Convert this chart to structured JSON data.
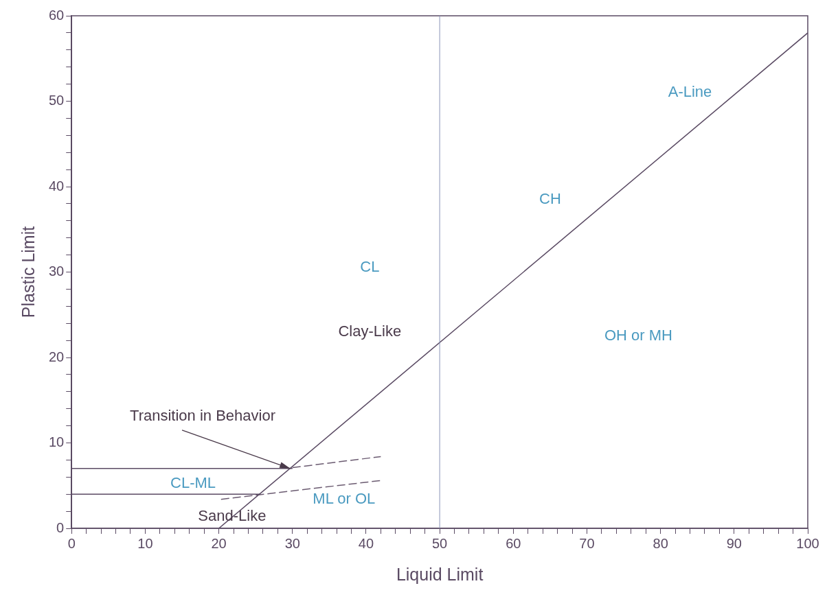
{
  "chart_data": {
    "type": "line",
    "xlabel": "Liquid Limit",
    "ylabel": "Plastic Limit",
    "xlim": [
      0,
      100
    ],
    "ylim": [
      0,
      60
    ],
    "xticks": [
      0,
      {
        "value": 2,
        "label": null
      },
      {
        "value": 4,
        "label": null
      },
      {
        "value": 6,
        "label": null
      },
      {
        "value": 8,
        "label": null
      },
      10,
      {
        "value": 12,
        "label": null
      },
      {
        "value": 14,
        "label": null
      },
      {
        "value": 16,
        "label": null
      },
      {
        "value": 18,
        "label": null
      },
      20,
      {
        "value": 22,
        "label": null
      },
      {
        "value": 24,
        "label": null
      },
      {
        "value": 26,
        "label": null
      },
      {
        "value": 28,
        "label": null
      },
      30,
      {
        "value": 32,
        "label": null
      },
      {
        "value": 34,
        "label": null
      },
      {
        "value": 36,
        "label": null
      },
      {
        "value": 38,
        "label": null
      },
      40,
      {
        "value": 42,
        "label": null
      },
      {
        "value": 44,
        "label": null
      },
      {
        "value": 46,
        "label": null
      },
      {
        "value": 48,
        "label": null
      },
      50,
      {
        "value": 52,
        "label": null
      },
      {
        "value": 54,
        "label": null
      },
      {
        "value": 56,
        "label": null
      },
      {
        "value": 58,
        "label": null
      },
      60,
      {
        "value": 62,
        "label": null
      },
      {
        "value": 64,
        "label": null
      },
      {
        "value": 66,
        "label": null
      },
      {
        "value": 68,
        "label": null
      },
      70,
      {
        "value": 72,
        "label": null
      },
      {
        "value": 74,
        "label": null
      },
      {
        "value": 76,
        "label": null
      },
      {
        "value": 78,
        "label": null
      },
      80,
      {
        "value": 82,
        "label": null
      },
      {
        "value": 84,
        "label": null
      },
      {
        "value": 86,
        "label": null
      },
      {
        "value": 88,
        "label": null
      },
      90,
      {
        "value": 92,
        "label": null
      },
      {
        "value": 94,
        "label": null
      },
      {
        "value": 96,
        "label": null
      },
      {
        "value": 98,
        "label": null
      },
      100
    ],
    "yticks": [
      0,
      {
        "value": 2,
        "label": null
      },
      {
        "value": 4,
        "label": null
      },
      {
        "value": 6,
        "label": null
      },
      {
        "value": 8,
        "label": null
      },
      10,
      {
        "value": 12,
        "label": null
      },
      {
        "value": 14,
        "label": null
      },
      {
        "value": 16,
        "label": null
      },
      {
        "value": 18,
        "label": null
      },
      20,
      {
        "value": 22,
        "label": null
      },
      {
        "value": 24,
        "label": null
      },
      {
        "value": 26,
        "label": null
      },
      {
        "value": 28,
        "label": null
      },
      30,
      {
        "value": 32,
        "label": null
      },
      {
        "value": 34,
        "label": null
      },
      {
        "value": 36,
        "label": null
      },
      {
        "value": 38,
        "label": null
      },
      40,
      {
        "value": 42,
        "label": null
      },
      {
        "value": 44,
        "label": null
      },
      {
        "value": 46,
        "label": null
      },
      {
        "value": 48,
        "label": null
      },
      50,
      {
        "value": 52,
        "label": null
      },
      {
        "value": 54,
        "label": null
      },
      {
        "value": 56,
        "label": null
      },
      {
        "value": 58,
        "label": null
      },
      60
    ],
    "grid": false,
    "legend": false,
    "marker": "none",
    "series": [
      {
        "color": "#5a4a63",
        "x": [
          20,
          100
        ],
        "values": [
          0,
          58
        ],
        "line_style": "solid"
      },
      {
        "color": "#5a4a63",
        "x": [
          0,
          30
        ],
        "values": [
          7,
          7
        ],
        "line_style": "solid"
      },
      {
        "color": "#5a4a63",
        "x": [
          0,
          25.6
        ],
        "values": [
          4,
          4
        ],
        "line_style": "solid"
      },
      {
        "color": "#6a5a70",
        "x": [
          30,
          42
        ],
        "values": [
          7.1,
          8.4
        ],
        "line_style": "dashed"
      },
      {
        "color": "#6a5a70",
        "x": [
          20.3,
          42
        ],
        "values": [
          3.4,
          5.6
        ],
        "line_style": "dashed"
      }
    ],
    "ref_lines": [
      {
        "axis": "x",
        "value": 50,
        "label": null,
        "color": "#8a93b8"
      }
    ],
    "annotations": [
      "A-Line",
      "CH",
      "CL",
      "Clay-Like",
      "OH or MH",
      {
        "text": "Transition in Behavior",
        "x": 29.7,
        "y": 7
      },
      "CL-ML",
      "ML or OL",
      "Sand-Like"
    ]
  }
}
